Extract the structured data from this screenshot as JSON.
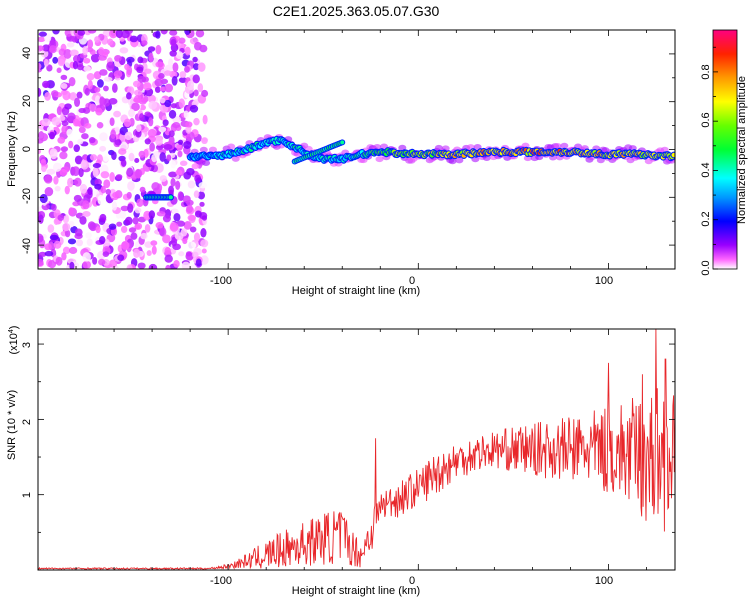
{
  "chart_data": [
    {
      "type": "heatmap",
      "title": "C2E1.2025.363.05.07.G30",
      "xlabel": "Height of straight line (km)",
      "ylabel": "Frequency (Hz)",
      "xlim": [
        -200,
        135
      ],
      "ylim": [
        -50,
        50
      ],
      "xticks": [
        -100,
        0,
        100
      ],
      "xtick_labels": [
        "-100",
        "0",
        "100"
      ],
      "yticks": [
        -40,
        -20,
        0,
        20,
        40
      ],
      "ytick_labels": [
        "-40",
        "-20",
        "0",
        "20",
        "40"
      ],
      "colorbar": {
        "label": "Normalized spectral amplitude",
        "range": [
          0,
          0.97
        ],
        "ticks": [
          0.0,
          0.2,
          0.4,
          0.6,
          0.8
        ],
        "tick_labels": [
          "0.0",
          "0.2",
          "0.4",
          "0.6",
          "0.8"
        ],
        "colormap": [
          "#ffffff",
          "#ff00ff",
          "#8000ff",
          "#0000ff",
          "#00ffff",
          "#00ff00",
          "#ffff00",
          "#ff8000",
          "#ff0000",
          "#ff0080"
        ]
      },
      "noise_region": {
        "x_range": [
          -200,
          -112
        ],
        "freq_range": [
          -50,
          50
        ],
        "amplitude": 0.1
      },
      "ridge": [
        {
          "x": -120,
          "freq": -3,
          "amplitude": 0.35
        },
        {
          "x": -110,
          "freq": -3,
          "amplitude": 0.4
        },
        {
          "x": -100,
          "freq": -2,
          "amplitude": 0.45
        },
        {
          "x": -90,
          "freq": 0,
          "amplitude": 0.45
        },
        {
          "x": -80,
          "freq": 3,
          "amplitude": 0.45
        },
        {
          "x": -72,
          "freq": 4,
          "amplitude": 0.4
        },
        {
          "x": -65,
          "freq": 1,
          "amplitude": 0.45
        },
        {
          "x": -58,
          "freq": -2,
          "amplitude": 0.45
        },
        {
          "x": -50,
          "freq": -4,
          "amplitude": 0.45
        },
        {
          "x": -40,
          "freq": -4,
          "amplitude": 0.45
        },
        {
          "x": -30,
          "freq": -2,
          "amplitude": 0.5
        },
        {
          "x": -20,
          "freq": -1,
          "amplitude": 0.6
        },
        {
          "x": 0,
          "freq": -2,
          "amplitude": 0.7
        },
        {
          "x": 20,
          "freq": -2,
          "amplitude": 0.8
        },
        {
          "x": 40,
          "freq": -1,
          "amplitude": 0.85
        },
        {
          "x": 60,
          "freq": -1,
          "amplitude": 0.85
        },
        {
          "x": 80,
          "freq": -1,
          "amplitude": 0.85
        },
        {
          "x": 100,
          "freq": -2,
          "amplitude": 0.8
        },
        {
          "x": 120,
          "freq": -2,
          "amplitude": 0.75
        },
        {
          "x": 133,
          "freq": -3,
          "amplitude": 0.7
        }
      ],
      "branch_segment": {
        "x_range": [
          -65,
          -40
        ],
        "freq_range": [
          -5,
          3
        ]
      },
      "side_feature": {
        "x_range": [
          -143,
          -130
        ],
        "freq": -20,
        "amplitude": 0.45
      }
    },
    {
      "type": "line",
      "title": "",
      "xlabel": "Height of straight line (km)",
      "ylabel": "SNR (10 * v/v)",
      "y_multiplier": "(x10",
      "y_multiplier_exp": "4",
      "y_multiplier_close": ")",
      "xlim": [
        -200,
        135
      ],
      "ylim": [
        0,
        3.2
      ],
      "xticks": [
        -100,
        0,
        100
      ],
      "xtick_labels": [
        "-100",
        "0",
        "100"
      ],
      "yticks": [
        1,
        2,
        3
      ],
      "ytick_labels": [
        "1",
        "2",
        "3"
      ],
      "color": "#e8262a",
      "series": [
        {
          "name": "SNR",
          "envelope": [
            {
              "x": -200,
              "mean": 0.02,
              "amp": 0.01
            },
            {
              "x": -110,
              "mean": 0.02,
              "amp": 0.01
            },
            {
              "x": -100,
              "mean": 0.05,
              "amp": 0.03
            },
            {
              "x": -90,
              "mean": 0.12,
              "amp": 0.1
            },
            {
              "x": -80,
              "mean": 0.2,
              "amp": 0.2
            },
            {
              "x": -70,
              "mean": 0.28,
              "amp": 0.25
            },
            {
              "x": -60,
              "mean": 0.35,
              "amp": 0.3
            },
            {
              "x": -50,
              "mean": 0.42,
              "amp": 0.35
            },
            {
              "x": -40,
              "mean": 0.45,
              "amp": 0.4
            },
            {
              "x": -35,
              "mean": 0.3,
              "amp": 0.25
            },
            {
              "x": -30,
              "mean": 0.2,
              "amp": 0.18
            },
            {
              "x": -25,
              "mean": 0.5,
              "amp": 0.3
            },
            {
              "x": -20,
              "mean": 0.85,
              "amp": 0.2
            },
            {
              "x": -10,
              "mean": 0.95,
              "amp": 0.25
            },
            {
              "x": 0,
              "mean": 1.1,
              "amp": 0.25
            },
            {
              "x": 10,
              "mean": 1.3,
              "amp": 0.3
            },
            {
              "x": 20,
              "mean": 1.45,
              "amp": 0.25
            },
            {
              "x": 30,
              "mean": 1.55,
              "amp": 0.25
            },
            {
              "x": 40,
              "mean": 1.6,
              "amp": 0.25
            },
            {
              "x": 50,
              "mean": 1.6,
              "amp": 0.3
            },
            {
              "x": 60,
              "mean": 1.6,
              "amp": 0.35
            },
            {
              "x": 70,
              "mean": 1.6,
              "amp": 0.4
            },
            {
              "x": 80,
              "mean": 1.6,
              "amp": 0.45
            },
            {
              "x": 90,
              "mean": 1.6,
              "amp": 0.5
            },
            {
              "x": 100,
              "mean": 1.6,
              "amp": 0.6
            },
            {
              "x": 110,
              "mean": 1.55,
              "amp": 0.7
            },
            {
              "x": 120,
              "mean": 1.5,
              "amp": 0.9
            },
            {
              "x": 130,
              "mean": 1.5,
              "amp": 1.0
            },
            {
              "x": 135,
              "mean": 1.5,
              "amp": 0.8
            }
          ],
          "peaks": [
            {
              "x": -22.5,
              "y": 1.75
            },
            {
              "x": 100,
              "y": 2.75
            },
            {
              "x": 118,
              "y": 2.6
            },
            {
              "x": 125,
              "y": 3.2
            },
            {
              "x": 130,
              "y": 2.8
            }
          ]
        }
      ]
    }
  ]
}
